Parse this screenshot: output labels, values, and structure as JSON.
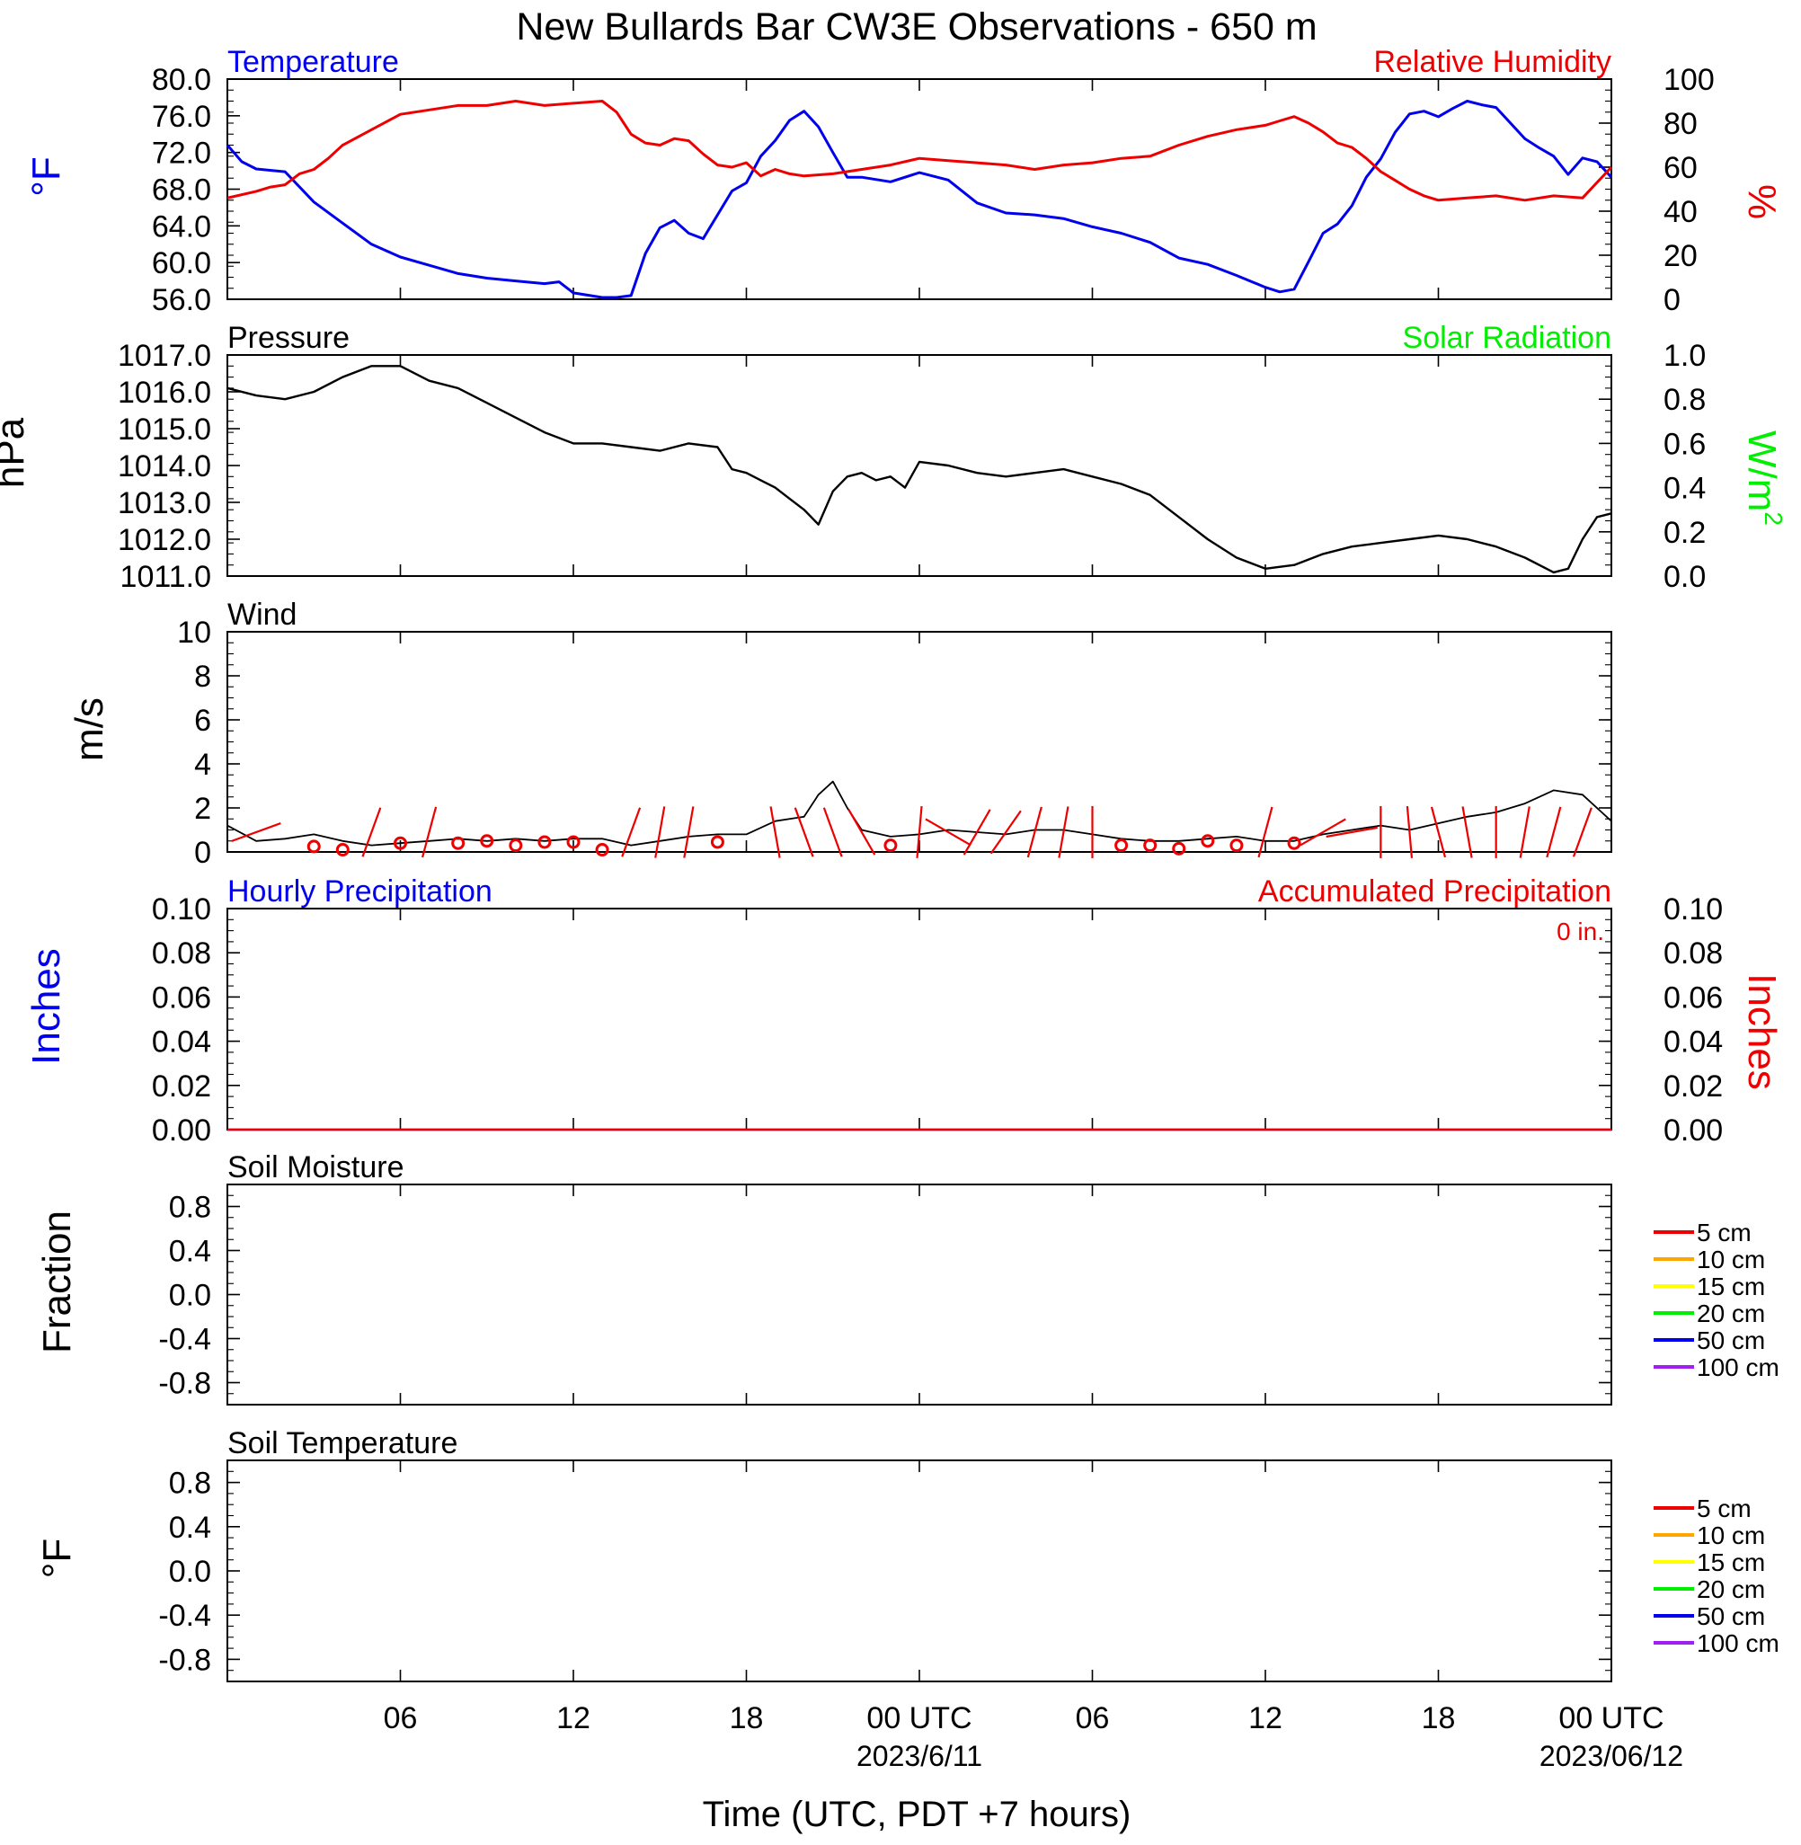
{
  "title": "New Bullards Bar CW3E Observations - 650 m",
  "colors": {
    "temperature": "#0000ee",
    "humidity": "#ee0000",
    "pressure": "#000000",
    "solar": "#00ee00",
    "wind": "#000000",
    "barb": "#ee0000",
    "precip_hourly": "#0000ee",
    "precip_accum": "#ee0000"
  },
  "x_axis": {
    "label": "Time (UTC, PDT +7 hours)",
    "range_hours": [
      0,
      48
    ],
    "tick_hours": [
      6,
      12,
      18,
      24,
      30,
      36,
      42,
      48
    ],
    "tick_labels": [
      "06",
      "12",
      "18",
      "00 UTC",
      "06",
      "12",
      "18",
      "00 UTC"
    ],
    "date_labels": [
      {
        "hour": 24,
        "text": "2023/6/11"
      },
      {
        "hour": 48,
        "text": "2023/06/12"
      }
    ]
  },
  "chart_data": [
    {
      "type": "line",
      "id": "temp_rh",
      "left_title": "Temperature",
      "right_title": "Relative Humidity",
      "ylabel_left": "°F",
      "ylabel_right": "%",
      "ylim_left": [
        56,
        80
      ],
      "ylim_right": [
        0,
        100
      ],
      "yticks_left": [
        "56.0",
        "60.0",
        "64.0",
        "68.0",
        "72.0",
        "76.0",
        "80.0"
      ],
      "yticks_right": [
        "0",
        "20",
        "40",
        "60",
        "80",
        "100"
      ],
      "grid": false,
      "series": [
        {
          "name": "Temperature",
          "axis": "left",
          "x": [
            0,
            0.5,
            1,
            2,
            3,
            4,
            5,
            6,
            7,
            8,
            9,
            10,
            11,
            11.5,
            12,
            13,
            13.5,
            14,
            14.5,
            15,
            15.5,
            16,
            16.5,
            17,
            17.5,
            18,
            18.5,
            19,
            19.5,
            20,
            20.5,
            21,
            21.5,
            22,
            23,
            24,
            25,
            26,
            27,
            28,
            29,
            30,
            31,
            32,
            33,
            34,
            35,
            36,
            36.5,
            37,
            37.5,
            38,
            38.5,
            39,
            39.5,
            40,
            40.5,
            41,
            41.5,
            42,
            42.5,
            43,
            43.5,
            44,
            45,
            45.5,
            46,
            46.5,
            47,
            47.5,
            48
          ],
          "values": [
            72.8,
            71.0,
            70.2,
            69.9,
            66.6,
            64.3,
            62.0,
            60.6,
            59.7,
            58.8,
            58.3,
            58.0,
            57.7,
            57.9,
            56.7,
            56.2,
            56.2,
            56.4,
            61.0,
            63.8,
            64.6,
            63.2,
            62.6,
            65.2,
            67.8,
            68.7,
            71.6,
            73.3,
            75.5,
            76.5,
            74.8,
            72.0,
            69.3,
            69.3,
            68.8,
            69.8,
            69.0,
            66.5,
            65.4,
            65.2,
            64.8,
            63.9,
            63.2,
            62.2,
            60.5,
            59.8,
            58.6,
            57.3,
            56.8,
            57.1,
            60.1,
            63.2,
            64.2,
            66.2,
            69.3,
            71.3,
            74.2,
            76.2,
            76.5,
            75.9,
            76.8,
            77.6,
            77.2,
            76.9,
            73.5,
            72.5,
            71.6,
            69.6,
            71.4,
            71.0,
            69.3
          ]
        },
        {
          "name": "Relative Humidity",
          "axis": "right",
          "x": [
            0,
            1,
            1.5,
            2,
            2.5,
            3,
            3.5,
            4,
            5,
            6,
            7,
            8,
            9,
            10,
            11,
            12,
            13,
            13.5,
            14,
            14.5,
            15,
            15.5,
            16,
            16.5,
            17,
            17.5,
            18,
            18.5,
            19,
            19.5,
            20,
            21,
            22,
            23,
            24,
            25,
            26,
            27,
            28,
            29,
            30,
            31,
            32,
            33,
            34,
            35,
            36,
            36.5,
            37,
            37.5,
            38,
            38.5,
            39,
            39.5,
            40,
            40.5,
            41,
            41.5,
            42,
            43,
            44,
            45,
            46,
            47,
            48
          ],
          "values": [
            46,
            49,
            51,
            52,
            57,
            59,
            64,
            70,
            77,
            84,
            86,
            88,
            88,
            90,
            88,
            89,
            90,
            85,
            75,
            71,
            70,
            73,
            72,
            66,
            61,
            60,
            62,
            56,
            59,
            57,
            56,
            57,
            59,
            61,
            64,
            63,
            62,
            61,
            59,
            61,
            62,
            64,
            65,
            70,
            74,
            77,
            79,
            81,
            83,
            80,
            76,
            71,
            69,
            64,
            58,
            54,
            50,
            47,
            45,
            46,
            47,
            45,
            47,
            46,
            60
          ]
        }
      ]
    },
    {
      "type": "line",
      "id": "pressure_solar",
      "left_title": "Pressure",
      "right_title": "Solar Radiation",
      "ylabel_left": "hPa",
      "ylabel_right": "W/m",
      "ylabel_right_sup": "2",
      "ylim_left": [
        1011,
        1017
      ],
      "ylim_right": [
        0,
        1
      ],
      "yticks_left": [
        "1011.0",
        "1012.0",
        "1013.0",
        "1014.0",
        "1015.0",
        "1016.0",
        "1017.0"
      ],
      "yticks_right": [
        "0.0",
        "0.2",
        "0.4",
        "0.6",
        "0.8",
        "1.0"
      ],
      "series": [
        {
          "name": "Pressure",
          "axis": "left",
          "x": [
            0,
            1,
            2,
            3,
            4,
            5,
            6,
            7,
            8,
            9,
            10,
            11,
            12,
            13,
            14,
            15,
            16,
            17,
            17.5,
            18,
            18.5,
            19,
            19.5,
            20,
            20.5,
            21,
            21.5,
            22,
            22.5,
            23,
            23.5,
            24,
            25,
            26,
            27,
            28,
            29,
            30,
            31,
            32,
            33,
            34,
            35,
            36,
            37,
            38,
            39,
            40,
            41,
            42,
            43,
            44,
            45,
            46,
            46.5,
            47,
            47.5,
            48
          ],
          "values": [
            1016.1,
            1015.9,
            1015.8,
            1016.0,
            1016.4,
            1016.7,
            1016.7,
            1016.3,
            1016.1,
            1015.7,
            1015.3,
            1014.9,
            1014.6,
            1014.6,
            1014.5,
            1014.4,
            1014.6,
            1014.5,
            1013.9,
            1013.8,
            1013.6,
            1013.4,
            1013.1,
            1012.8,
            1012.4,
            1013.3,
            1013.7,
            1013.8,
            1013.6,
            1013.7,
            1013.4,
            1014.1,
            1014.0,
            1013.8,
            1013.7,
            1013.8,
            1013.9,
            1013.7,
            1013.5,
            1013.2,
            1012.6,
            1012.0,
            1011.5,
            1011.2,
            1011.3,
            1011.6,
            1011.8,
            1011.9,
            1012.0,
            1012.1,
            1012.0,
            1011.8,
            1011.5,
            1011.1,
            1011.2,
            1012.0,
            1012.6,
            1012.7
          ]
        }
      ]
    },
    {
      "type": "line",
      "id": "wind",
      "left_title": "Wind",
      "ylabel_left": "m/s",
      "ylim_left": [
        0,
        10
      ],
      "yticks_left": [
        "0",
        "2",
        "4",
        "6",
        "8",
        "10"
      ],
      "series": [
        {
          "name": "Wind",
          "axis": "left",
          "x": [
            0,
            1,
            2,
            3,
            4,
            5,
            6,
            7,
            8,
            9,
            10,
            11,
            12,
            13,
            14,
            15,
            16,
            17,
            18,
            19,
            20,
            20.5,
            21,
            21.5,
            22,
            23,
            24,
            25,
            26,
            27,
            28,
            29,
            30,
            31,
            32,
            33,
            34,
            35,
            36,
            37,
            38,
            39,
            40,
            41,
            42,
            43,
            44,
            45,
            46,
            47,
            48
          ],
          "values": [
            1.2,
            0.5,
            0.6,
            0.8,
            0.5,
            0.3,
            0.4,
            0.5,
            0.6,
            0.5,
            0.6,
            0.5,
            0.6,
            0.6,
            0.3,
            0.5,
            0.7,
            0.8,
            0.8,
            1.4,
            1.6,
            2.6,
            3.2,
            2.0,
            1.0,
            0.7,
            0.8,
            1.0,
            0.9,
            0.8,
            1.0,
            1.0,
            0.8,
            0.6,
            0.5,
            0.5,
            0.6,
            0.7,
            0.5,
            0.5,
            0.8,
            1.0,
            1.2,
            1.0,
            1.3,
            1.6,
            1.8,
            2.2,
            2.8,
            2.6,
            1.4
          ]
        }
      ],
      "barbs": {
        "note": "hourly wind direction sticks and calm circles",
        "calm_hours": [
          3,
          4,
          6,
          8,
          9,
          10,
          11,
          12,
          13,
          17,
          23,
          31,
          32,
          33,
          34,
          35,
          37
        ],
        "calm_values": [
          0.25,
          0.1,
          0.4,
          0.4,
          0.5,
          0.3,
          0.45,
          0.45,
          0.1,
          0.45,
          0.3,
          0.3,
          0.3,
          0.15,
          0.5,
          0.3,
          0.4
        ],
        "stick_hours": [
          1,
          5,
          7,
          14,
          15,
          16,
          19,
          20,
          21,
          22,
          24,
          25,
          26,
          27,
          28,
          29,
          30,
          36,
          38,
          39,
          40,
          41,
          42,
          43,
          44,
          45,
          46,
          47
        ],
        "stick_dirs_deg": [
          250,
          20,
          15,
          200,
          190,
          190,
          350,
          340,
          340,
          330,
          5,
          300,
          210,
          215,
          195,
          190,
          0,
          15,
          240,
          260,
          180,
          355,
          345,
          350,
          0,
          190,
          195,
          200
        ]
      }
    },
    {
      "type": "line",
      "id": "precip",
      "left_title": "Hourly Precipitation",
      "right_title": "Accumulated Precipitation",
      "annotation": "0 in.",
      "ylabel_left": "Inches",
      "ylabel_right": "Inches",
      "ylim_left": [
        0,
        0.1
      ],
      "ylim_right": [
        0,
        0.1
      ],
      "yticks_left": [
        "0.00",
        "0.02",
        "0.04",
        "0.06",
        "0.08",
        "0.10"
      ],
      "yticks_right": [
        "0.00",
        "0.02",
        "0.04",
        "0.06",
        "0.08",
        "0.10"
      ],
      "series": [
        {
          "name": "Hourly Precipitation",
          "axis": "left",
          "x": [
            0,
            48
          ],
          "values": [
            0,
            0
          ]
        },
        {
          "name": "Accumulated Precipitation",
          "axis": "right",
          "x": [
            0,
            48
          ],
          "values": [
            0,
            0
          ]
        }
      ]
    },
    {
      "type": "line",
      "id": "soil_moisture",
      "left_title": "Soil Moisture",
      "ylabel_left": "Fraction",
      "ylim_left": [
        -1,
        1
      ],
      "yticks_left": [
        "-0.8",
        "-0.4",
        "0.0",
        "0.4",
        "0.8"
      ],
      "legend": [
        {
          "label": "5 cm",
          "color": "#ee0000"
        },
        {
          "label": "10 cm",
          "color": "#ffa500"
        },
        {
          "label": "15 cm",
          "color": "#ffff00"
        },
        {
          "label": "20 cm",
          "color": "#00ee00"
        },
        {
          "label": "50 cm",
          "color": "#0000ee"
        },
        {
          "label": "100 cm",
          "color": "#a020f0"
        }
      ],
      "series": []
    },
    {
      "type": "line",
      "id": "soil_temperature",
      "left_title": "Soil Temperature",
      "ylabel_left": "°F",
      "ylim_left": [
        -1,
        1
      ],
      "yticks_left": [
        "-0.8",
        "-0.4",
        "0.0",
        "0.4",
        "0.8"
      ],
      "legend": [
        {
          "label": "5 cm",
          "color": "#ee0000"
        },
        {
          "label": "10 cm",
          "color": "#ffa500"
        },
        {
          "label": "15 cm",
          "color": "#ffff00"
        },
        {
          "label": "20 cm",
          "color": "#00ee00"
        },
        {
          "label": "50 cm",
          "color": "#0000ee"
        },
        {
          "label": "100 cm",
          "color": "#a020f0"
        }
      ],
      "series": []
    }
  ]
}
